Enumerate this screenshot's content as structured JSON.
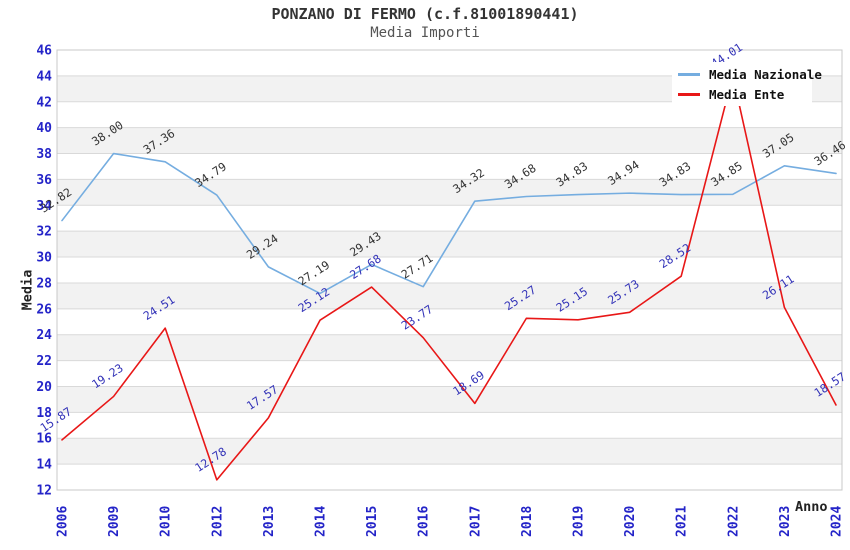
{
  "title": "PONZANO DI FERMO (c.f.81001890441)",
  "subtitle": "Media Importi",
  "chart_data": {
    "type": "line",
    "title": "PONZANO DI FERMO (c.f.81001890441)",
    "subtitle": "Media Importi",
    "xlabel": "Anno",
    "ylabel": "Media",
    "categories": [
      "2006",
      "2009",
      "2010",
      "2012",
      "2013",
      "2014",
      "2015",
      "2016",
      "2017",
      "2018",
      "2019",
      "2020",
      "2021",
      "2022",
      "2023",
      "2024"
    ],
    "series": [
      {
        "name": "Media Nazionale",
        "color": "#75ade0",
        "label_color": "#333333",
        "values": [
          32.82,
          38.0,
          37.36,
          34.79,
          29.24,
          27.19,
          29.43,
          27.71,
          34.32,
          34.68,
          34.83,
          34.94,
          34.83,
          34.85,
          37.05,
          36.46
        ]
      },
      {
        "name": "Media Ente",
        "color": "#e81717",
        "label_color": "#3333b8",
        "values": [
          15.87,
          19.23,
          24.51,
          12.78,
          17.57,
          25.12,
          27.68,
          23.77,
          18.69,
          25.27,
          25.15,
          25.73,
          28.52,
          44.01,
          26.11,
          18.57
        ]
      }
    ],
    "ylim": [
      12,
      46
    ],
    "ytick_step": 2,
    "grid": true,
    "legend_position": "top-right",
    "band_colors": [
      "#ffffff",
      "#f2f2f2"
    ],
    "gridline_color": "#d9d9d9",
    "border_color": "#c8c8c8",
    "tick_label_color": "#2424c8",
    "label_decimals": 2
  }
}
